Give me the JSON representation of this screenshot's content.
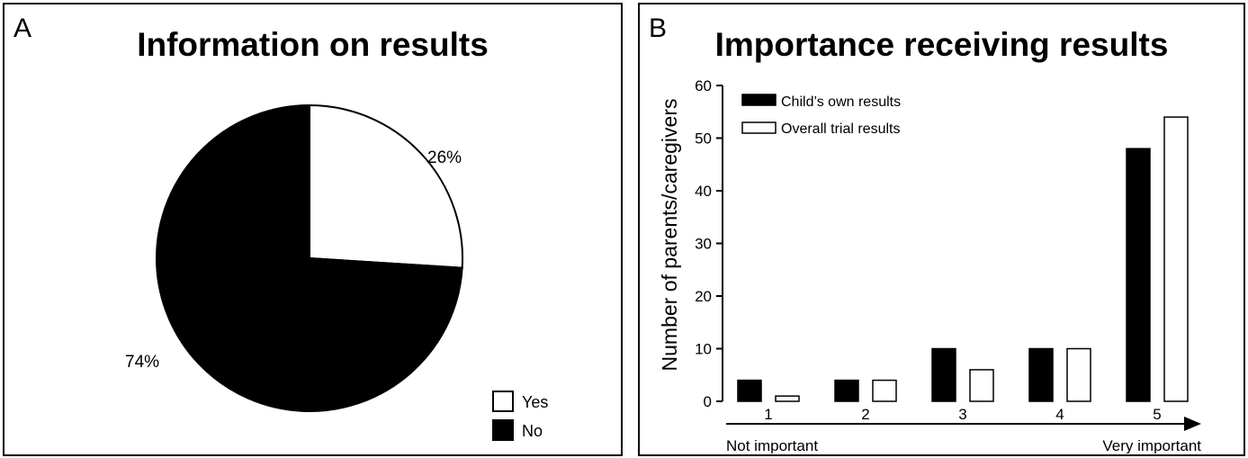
{
  "panel_a": {
    "letter": "A",
    "title": "Information on results",
    "colors": {
      "yes": "#ffffff",
      "no": "#000000"
    }
  },
  "panel_b": {
    "letter": "B",
    "title": "Importance receiving results",
    "colors": {
      "childs_own": "#000000",
      "overall_trial": "#ffffff"
    }
  },
  "chart_data": [
    {
      "type": "pie",
      "title": "Information on results",
      "slices": [
        {
          "label": "Yes",
          "value": 26,
          "display": "26%"
        },
        {
          "label": "No",
          "value": 74,
          "display": "74%"
        }
      ],
      "legend": [
        "Yes",
        "No"
      ],
      "legend_position": "bottom-right"
    },
    {
      "type": "bar",
      "title": "Importance receiving results",
      "ylabel": "Number of parents/caregivers",
      "xlabel_left": "Not important",
      "xlabel_right": "Very important",
      "categories": [
        "1",
        "2",
        "3",
        "4",
        "5"
      ],
      "series": [
        {
          "name": "Child’s own results",
          "values": [
            4,
            4,
            10,
            10,
            48
          ]
        },
        {
          "name": "Overall trial results",
          "values": [
            1,
            4,
            6,
            10,
            54
          ]
        }
      ],
      "ylim": [
        0,
        60
      ],
      "yticks": [
        "0",
        "10",
        "20",
        "30",
        "40",
        "50",
        "60"
      ],
      "grid": false,
      "legend_position": "top-left"
    }
  ]
}
